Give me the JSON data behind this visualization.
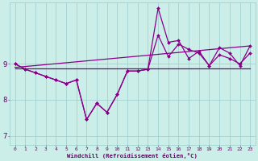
{
  "xlabel": "Windchill (Refroidissement éolien,°C)",
  "background_color": "#cceee8",
  "line_color": "#880088",
  "grid_color": "#99cccc",
  "text_color": "#660066",
  "xlim": [
    -0.5,
    23.5
  ],
  "ylim": [
    6.75,
    10.7
  ],
  "xticks": [
    0,
    1,
    2,
    3,
    4,
    5,
    6,
    7,
    8,
    9,
    10,
    11,
    12,
    13,
    14,
    15,
    16,
    17,
    18,
    19,
    20,
    21,
    22,
    23
  ],
  "yticks": [
    7,
    8,
    9
  ],
  "series_jagged1": [
    9.0,
    8.85,
    8.75,
    8.65,
    8.55,
    8.45,
    8.55,
    7.45,
    7.9,
    7.65,
    8.15,
    8.8,
    8.8,
    8.85,
    9.8,
    9.2,
    9.55,
    9.4,
    9.3,
    8.95,
    9.25,
    9.15,
    9.0,
    9.3
  ],
  "series_jagged2": [
    9.0,
    8.85,
    8.75,
    8.65,
    8.55,
    8.45,
    8.55,
    7.45,
    7.9,
    7.65,
    8.15,
    8.8,
    8.8,
    8.85,
    10.55,
    9.6,
    9.65,
    9.15,
    9.35,
    8.95,
    9.45,
    9.3,
    8.95,
    9.5
  ],
  "trend_x": [
    0,
    23
  ],
  "trend_y": [
    8.9,
    9.5
  ],
  "flat_y": 8.88,
  "marker_style": "D",
  "marker_size": 2.0,
  "linewidth": 0.9
}
